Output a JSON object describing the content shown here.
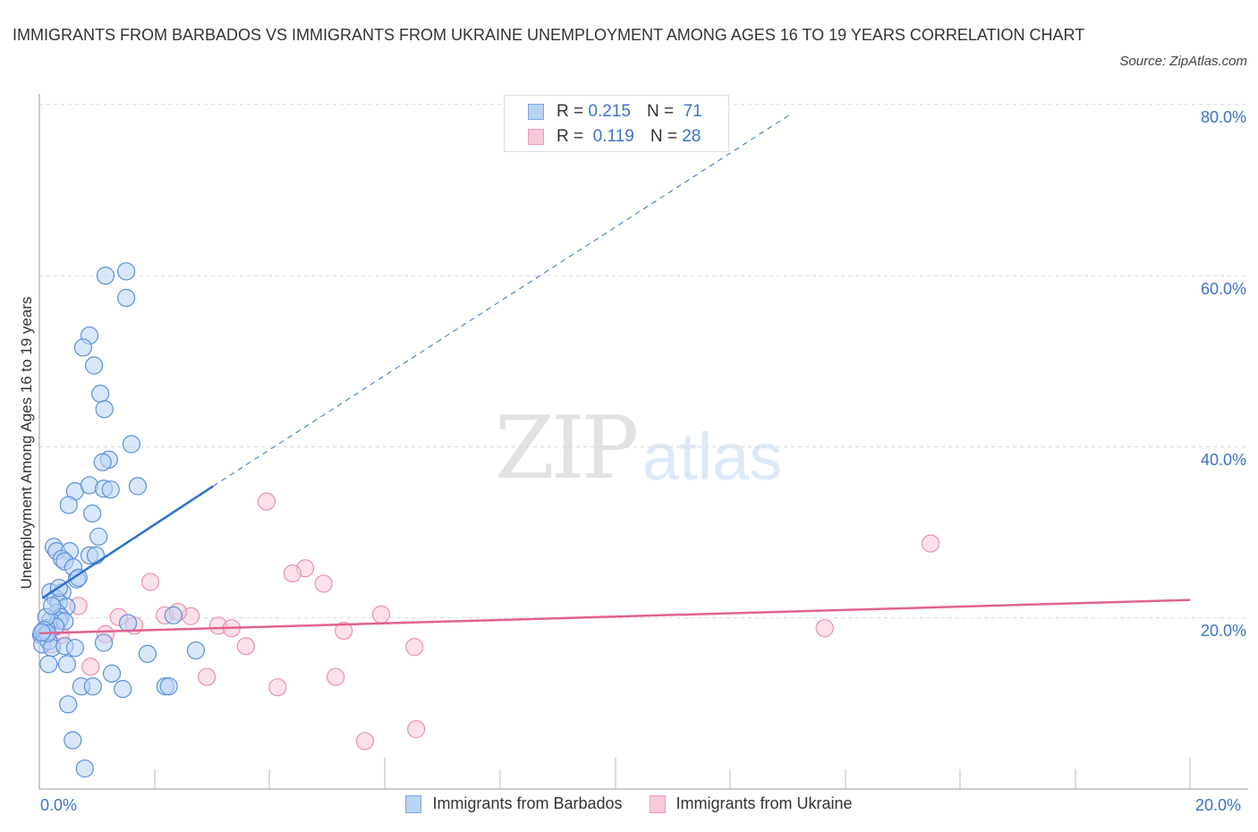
{
  "header": {
    "title": "IMMIGRANTS FROM BARBADOS VS IMMIGRANTS FROM UKRAINE UNEMPLOYMENT AMONG AGES 16 TO 19 YEARS CORRELATION CHART",
    "source": "Source: ZipAtlas.com"
  },
  "watermark": {
    "zip": "ZIP",
    "atlas": "atlas"
  },
  "legend": {
    "rows": [
      {
        "r_label": "R =",
        "r_value": "0.215",
        "n_label": "N =",
        "n_value": "71"
      },
      {
        "r_label": "R =",
        "r_value": "0.119",
        "n_label": "N =",
        "n_value": "28"
      }
    ]
  },
  "axes": {
    "ylabel": "Unemployment Among Ages 16 to 19 years",
    "yticks": [
      "80.0%",
      "60.0%",
      "40.0%",
      "20.0%"
    ],
    "xticks": [
      "0.0%",
      "20.0%"
    ]
  },
  "bottom_legend": {
    "series1": "Immigrants from Barbados",
    "series2": "Immigrants from Ukraine"
  },
  "colors": {
    "barbados_fill": "#b9d3f5",
    "barbados_stroke": "#5b8fdc",
    "barbados_line": "#2b72d0",
    "ukraine_fill": "#f9c9d8",
    "ukraine_stroke": "#e891ae",
    "ukraine_line": "#e2618e",
    "tick_text": "#3b73c8"
  },
  "chart_data": {
    "type": "scatter",
    "title": "Immigrants from Barbados vs Immigrants from Ukraine Unemployment Among Ages 16 to 19 years Correlation Chart",
    "xlabel": "",
    "ylabel": "Unemployment Among Ages 16 to 19 years",
    "xlim": [
      0,
      20
    ],
    "ylim": [
      0,
      80
    ],
    "x_unit": "%",
    "y_unit": "%",
    "grid": {
      "horizontal": true,
      "style": "dashed",
      "values": [
        20,
        40,
        60,
        80
      ]
    },
    "legend_position": "top-center (stats) and bottom (series names)",
    "series": [
      {
        "name": "Immigrants from Barbados",
        "R": 0.215,
        "N": 71,
        "trend": {
          "x": [
            0.05,
            3.02
          ],
          "y": [
            22.3,
            35.4
          ],
          "extended_dashed_to": [
            13.09,
            79.0
          ]
        },
        "points": [
          [
            1.15,
            60.0
          ],
          [
            1.51,
            60.5
          ],
          [
            1.51,
            57.4
          ],
          [
            0.87,
            53.0
          ],
          [
            0.76,
            51.6
          ],
          [
            0.95,
            49.5
          ],
          [
            1.06,
            46.2
          ],
          [
            1.13,
            44.4
          ],
          [
            1.6,
            40.3
          ],
          [
            1.21,
            38.5
          ],
          [
            1.1,
            38.2
          ],
          [
            1.71,
            35.4
          ],
          [
            0.62,
            34.8
          ],
          [
            0.87,
            35.5
          ],
          [
            1.12,
            35.1
          ],
          [
            1.24,
            35.0
          ],
          [
            0.51,
            33.2
          ],
          [
            0.92,
            32.2
          ],
          [
            1.03,
            29.5
          ],
          [
            0.25,
            28.3
          ],
          [
            0.3,
            27.8
          ],
          [
            0.53,
            27.8
          ],
          [
            0.39,
            26.9
          ],
          [
            0.44,
            26.6
          ],
          [
            0.59,
            25.9
          ],
          [
            0.87,
            27.3
          ],
          [
            0.98,
            27.3
          ],
          [
            0.65,
            24.5
          ],
          [
            0.19,
            23.0
          ],
          [
            0.4,
            23.0
          ],
          [
            0.28,
            22.3
          ],
          [
            0.34,
            21.8
          ],
          [
            0.47,
            21.3
          ],
          [
            0.31,
            20.6
          ],
          [
            0.37,
            20.1
          ],
          [
            0.34,
            19.7
          ],
          [
            0.19,
            19.7
          ],
          [
            0.44,
            19.6
          ],
          [
            0.28,
            19.0
          ],
          [
            0.12,
            18.8
          ],
          [
            0.06,
            18.4
          ],
          [
            0.03,
            18.0
          ],
          [
            0.09,
            17.8
          ],
          [
            0.05,
            16.9
          ],
          [
            0.16,
            17.3
          ],
          [
            0.22,
            16.5
          ],
          [
            0.44,
            16.7
          ],
          [
            0.62,
            16.5
          ],
          [
            1.54,
            19.4
          ],
          [
            2.33,
            20.3
          ],
          [
            1.88,
            15.8
          ],
          [
            2.72,
            16.2
          ],
          [
            1.12,
            17.1
          ],
          [
            0.16,
            14.6
          ],
          [
            0.48,
            14.6
          ],
          [
            1.26,
            13.5
          ],
          [
            0.73,
            12.0
          ],
          [
            0.93,
            12.0
          ],
          [
            1.45,
            11.7
          ],
          [
            2.19,
            12.0
          ],
          [
            2.25,
            12.0
          ],
          [
            0.5,
            9.9
          ],
          [
            0.58,
            5.7
          ],
          [
            0.79,
            2.4
          ],
          [
            0.12,
            20.1
          ],
          [
            0.22,
            21.4
          ],
          [
            0.34,
            23.5
          ],
          [
            0.68,
            24.7
          ],
          [
            0.08,
            18.6
          ],
          [
            0.14,
            18.2
          ],
          [
            0.04,
            18.3
          ]
        ]
      },
      {
        "name": "Immigrants from Ukraine",
        "R": 0.119,
        "N": 28,
        "trend": {
          "x": [
            0,
            20
          ],
          "y": [
            18.2,
            22.1
          ]
        },
        "points": [
          [
            3.95,
            33.6
          ],
          [
            15.49,
            28.7
          ],
          [
            4.62,
            25.8
          ],
          [
            4.4,
            25.2
          ],
          [
            4.94,
            24.0
          ],
          [
            1.93,
            24.2
          ],
          [
            0.68,
            21.4
          ],
          [
            2.18,
            20.3
          ],
          [
            1.38,
            20.1
          ],
          [
            2.63,
            20.2
          ],
          [
            2.41,
            20.7
          ],
          [
            5.94,
            20.4
          ],
          [
            3.11,
            19.1
          ],
          [
            3.34,
            18.8
          ],
          [
            1.65,
            19.1
          ],
          [
            1.15,
            18.1
          ],
          [
            5.29,
            18.5
          ],
          [
            13.65,
            18.8
          ],
          [
            3.59,
            16.7
          ],
          [
            6.52,
            16.6
          ],
          [
            0.37,
            18.0
          ],
          [
            0.22,
            16.9
          ],
          [
            0.89,
            14.3
          ],
          [
            2.91,
            13.1
          ],
          [
            5.15,
            13.1
          ],
          [
            4.14,
            11.9
          ],
          [
            5.66,
            5.6
          ],
          [
            6.55,
            7.0
          ]
        ]
      }
    ]
  }
}
